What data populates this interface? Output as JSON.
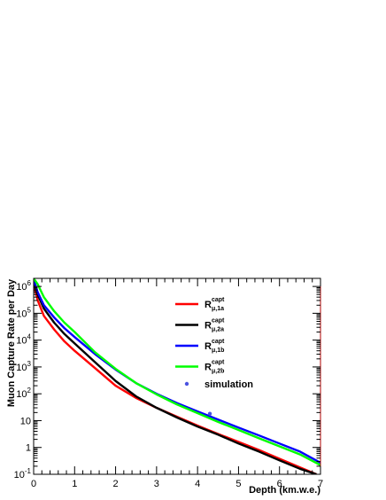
{
  "chart_data": {
    "type": "line",
    "title": "",
    "xlabel": "Depth (km.w.e.)",
    "ylabel": "Muon Capture Rate per Day",
    "xlim": [
      0,
      7
    ],
    "ylim": [
      0.1,
      2000000
    ],
    "yscale": "log",
    "grid": false,
    "legend_position": "upper-right (inside)",
    "x_ticks": [
      "0",
      "1",
      "2",
      "3",
      "4",
      "5",
      "6",
      "7"
    ],
    "y_ticks": [
      {
        "value": 0.1,
        "base": "10",
        "exp": "-1"
      },
      {
        "value": 1,
        "base": "1",
        "exp": ""
      },
      {
        "value": 10,
        "base": "10",
        "exp": ""
      },
      {
        "value": 100,
        "base": "10",
        "exp": "2"
      },
      {
        "value": 1000,
        "base": "10",
        "exp": "3"
      },
      {
        "value": 10000,
        "base": "10",
        "exp": "4"
      },
      {
        "value": 100000,
        "base": "10",
        "exp": "5"
      },
      {
        "value": 1000000,
        "base": "10",
        "exp": "6"
      }
    ],
    "series": [
      {
        "name_main": "R",
        "name_sup": "capt",
        "name_sub": "μ,1a",
        "color": "#ff0000",
        "x": [
          0,
          0.1,
          0.25,
          0.5,
          0.75,
          1,
          1.5,
          2,
          2.5,
          3,
          3.5,
          4,
          4.5,
          5,
          5.5,
          6,
          6.5,
          6.9
        ],
        "y": [
          1200000,
          300000,
          80000,
          25000,
          9000,
          4000,
          900,
          200,
          70,
          30,
          14,
          6.5,
          3.2,
          1.6,
          0.8,
          0.38,
          0.18,
          0.1
        ]
      },
      {
        "name_main": "R",
        "name_sup": "capt",
        "name_sub": "μ,2a",
        "color": "#000000",
        "x": [
          0,
          0.1,
          0.25,
          0.5,
          0.75,
          1,
          1.5,
          2,
          2.5,
          3,
          3.5,
          4,
          4.5,
          5,
          5.5,
          6,
          6.5,
          6.9
        ],
        "y": [
          1500000,
          500000,
          150000,
          45000,
          17000,
          7500,
          1500,
          300,
          80,
          30,
          13,
          6,
          3,
          1.4,
          0.7,
          0.33,
          0.16,
          0.1
        ]
      },
      {
        "name_main": "R",
        "name_sup": "capt",
        "name_sub": "μ,1b",
        "color": "#0000ff",
        "x": [
          0,
          0.1,
          0.25,
          0.5,
          0.75,
          1,
          1.5,
          2,
          2.5,
          3,
          3.5,
          4,
          4.5,
          5,
          5.5,
          6,
          6.5,
          7
        ],
        "y": [
          1800000,
          600000,
          200000,
          70000,
          28000,
          13000,
          3000,
          800,
          250,
          100,
          45,
          22,
          11,
          5.5,
          2.8,
          1.4,
          0.7,
          0.27
        ]
      },
      {
        "name_main": "R",
        "name_sup": "capt",
        "name_sub": "μ,2b",
        "color": "#00ff00",
        "x": [
          0,
          0.1,
          0.25,
          0.5,
          0.75,
          1,
          1.5,
          2,
          2.5,
          3,
          3.5,
          4,
          4.5,
          5,
          5.5,
          6,
          6.5,
          7
        ],
        "y": [
          2000000,
          1200000,
          400000,
          120000,
          45000,
          20000,
          3500,
          850,
          250,
          95,
          40,
          19,
          9,
          4.5,
          2.2,
          1.1,
          0.55,
          0.22
        ]
      }
    ],
    "points": {
      "name": "simulation",
      "color": "#4a52e0",
      "x": [
        4.3
      ],
      "y": [
        18
      ]
    }
  }
}
